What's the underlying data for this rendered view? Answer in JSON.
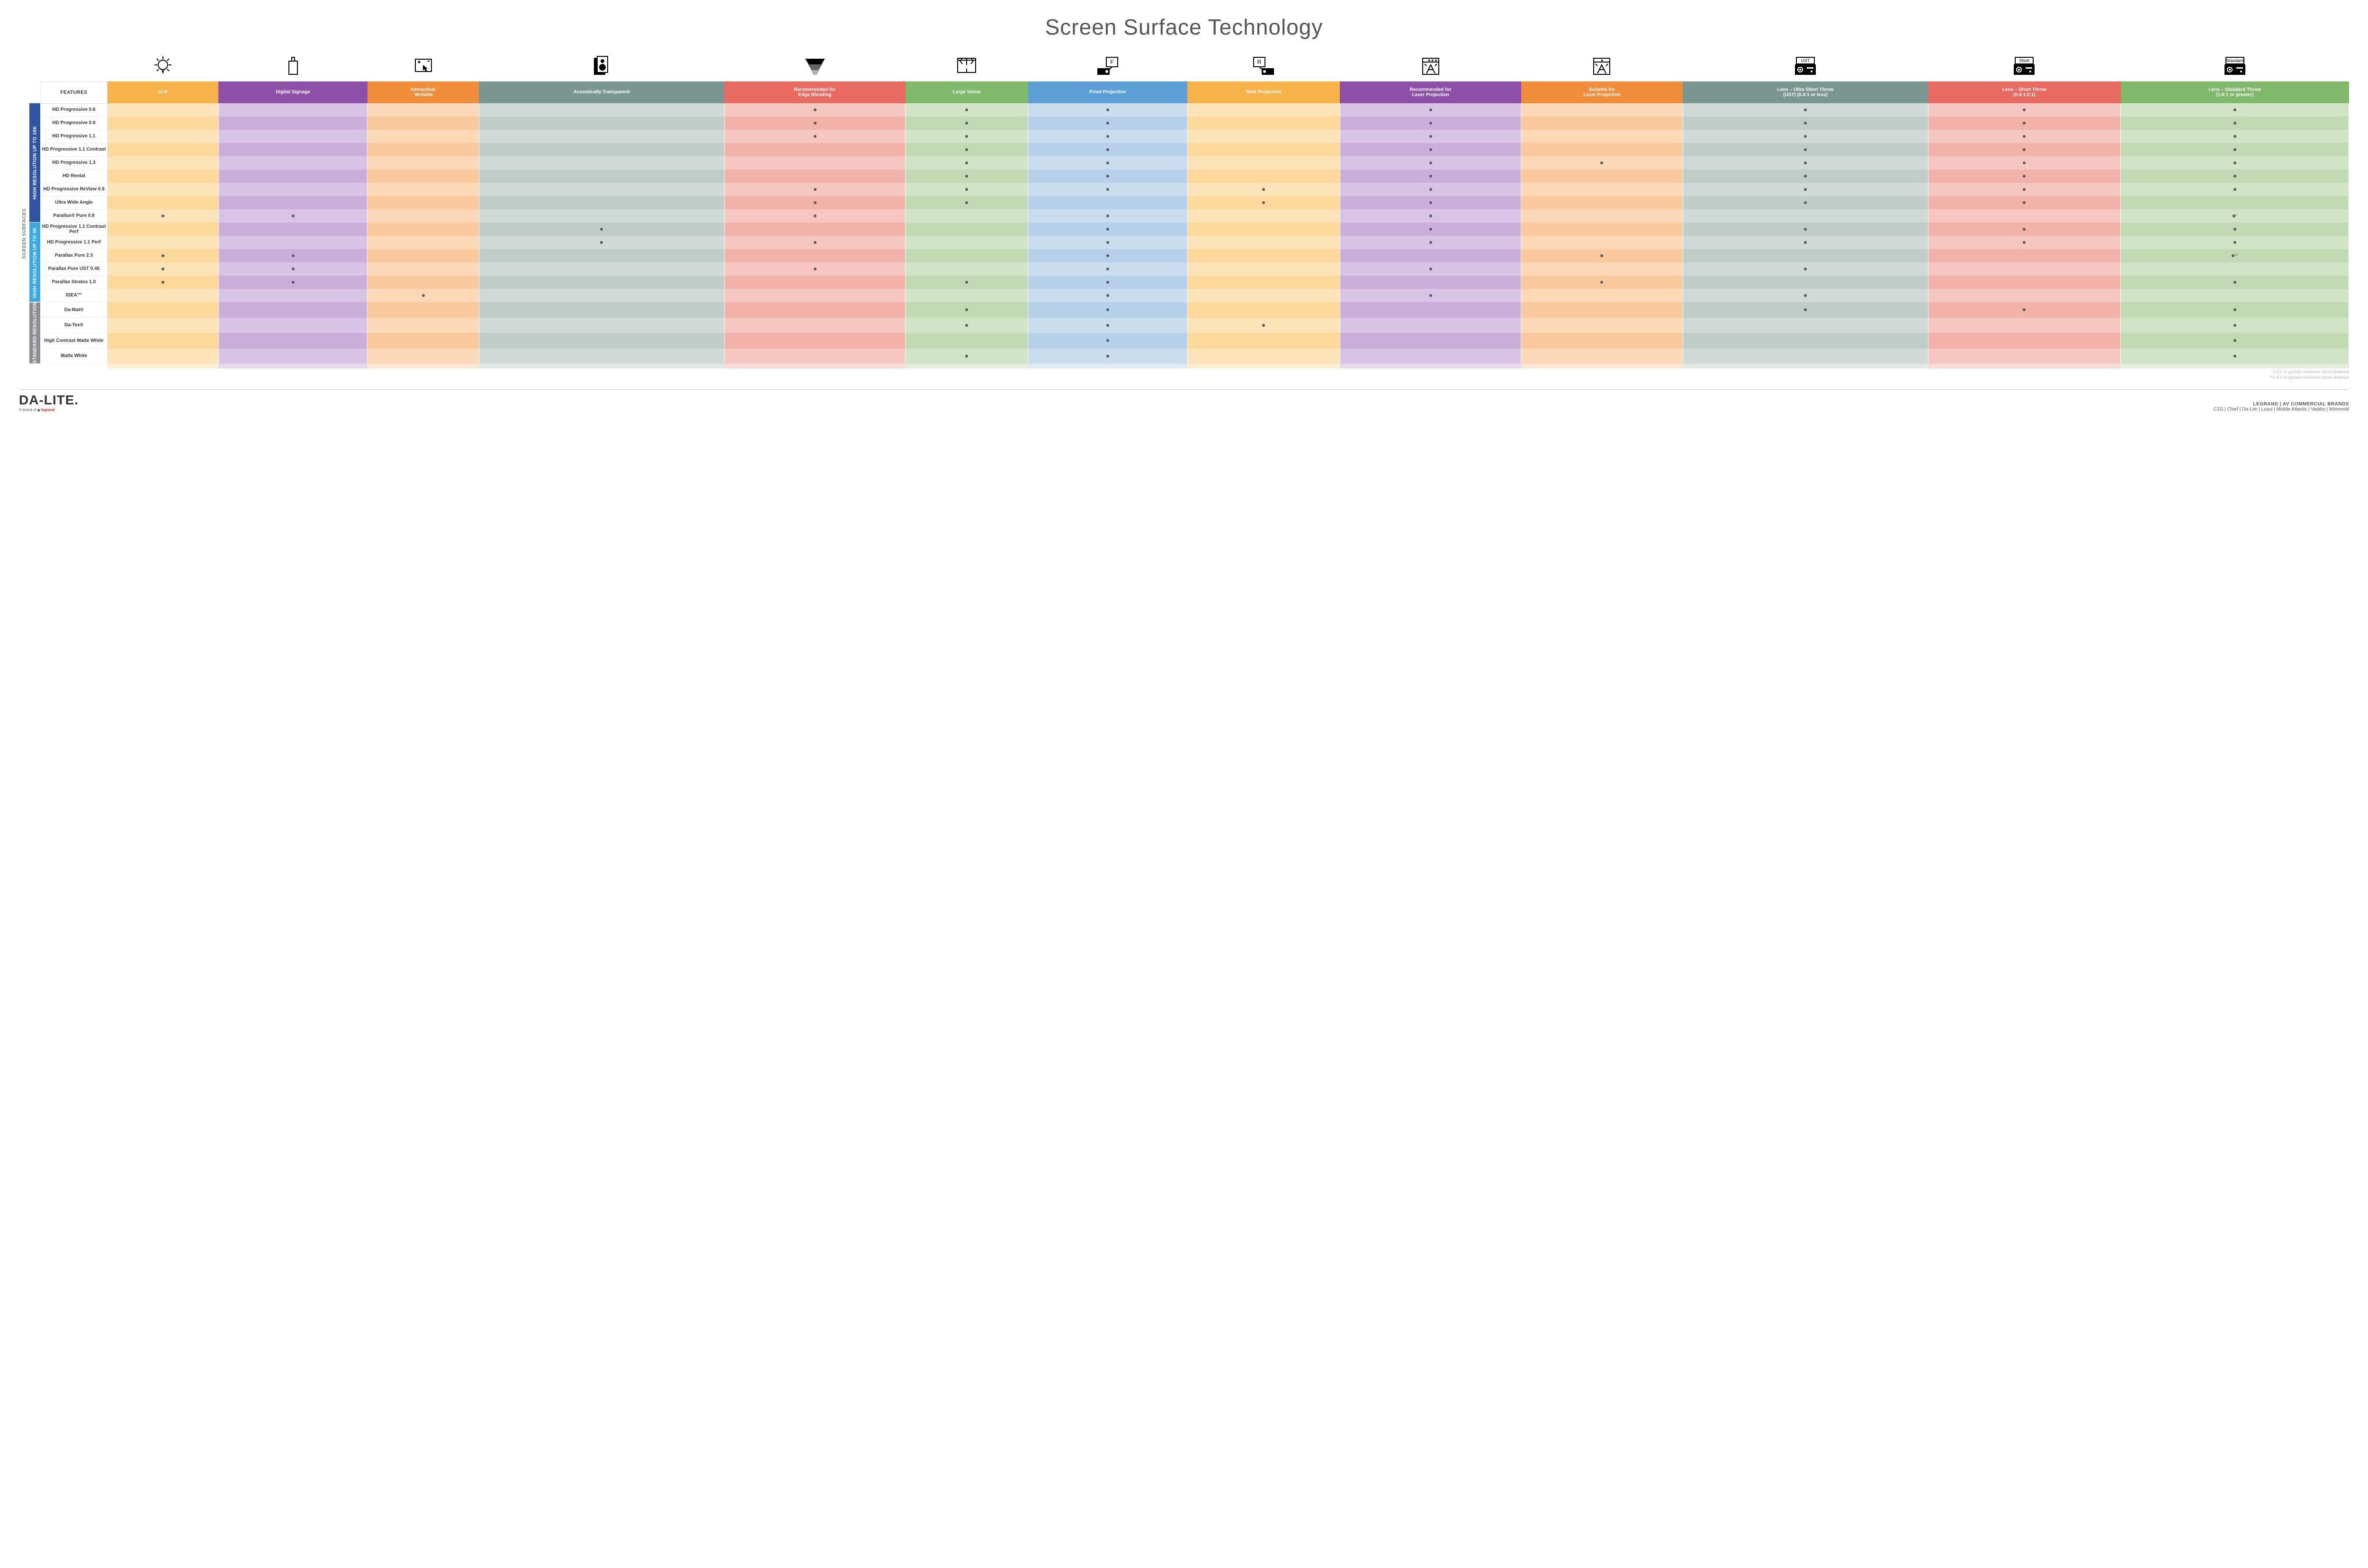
{
  "title": "Screen Surface Technology",
  "features_header": "FEATURES",
  "outer_category": "SCREEN SURFACES",
  "columns": [
    {
      "key": "alr",
      "label": "ALR",
      "base": "#f7b24a"
    },
    {
      "key": "signage",
      "label": "Digital Signage",
      "base": "#8e4fa8"
    },
    {
      "key": "interactive",
      "label": "Interactive/ Writable",
      "base": "#f08c3a"
    },
    {
      "key": "acoustic",
      "label": "Acoustically Transparent",
      "base": "#7a9690"
    },
    {
      "key": "edge",
      "label": "Recommended for Edge Blending",
      "base": "#e86a60"
    },
    {
      "key": "large",
      "label": "Large Venue",
      "base": "#7fb96c"
    },
    {
      "key": "front",
      "label": "Front Projection",
      "base": "#5c9fd6"
    },
    {
      "key": "rear",
      "label": "Rear Projection",
      "base": "#f7b24a"
    },
    {
      "key": "reclaser",
      "label": "Recommended for Laser Projection",
      "base": "#8e4fa8"
    },
    {
      "key": "suitlaser",
      "label": "Suitable for Laser Projection",
      "base": "#f08c3a"
    },
    {
      "key": "ust",
      "label": "Lens – Ultra Short Throw (UST) (0.4:1 or less)",
      "base": "#7a9690"
    },
    {
      "key": "short",
      "label": "Lens – Short Throw (0.4-1.0:1)",
      "base": "#e86a60"
    },
    {
      "key": "std",
      "label": "Lens – Standard Throw (1.0:1 or greater)",
      "base": "#7fb96c"
    }
  ],
  "column_tints": {
    "alr": [
      "#fde4b8",
      "#fcd89a"
    ],
    "signage": [
      "#d9c3e4",
      "#caaed9"
    ],
    "interactive": [
      "#fbd8b8",
      "#f9c89c"
    ],
    "acoustic": [
      "#cfd9d6",
      "#bfccc8"
    ],
    "edge": [
      "#f6c6c0",
      "#f2b2aa"
    ],
    "large": [
      "#d1e4c6",
      "#c1dab3"
    ],
    "front": [
      "#c9ddee",
      "#b5d0e8"
    ],
    "rear": [
      "#fde4b8",
      "#fcd89a"
    ],
    "reclaser": [
      "#d9c3e4",
      "#caaed9"
    ],
    "suitlaser": [
      "#fbd8b8",
      "#f9c89c"
    ],
    "ust": [
      "#cfd9d6",
      "#bfccc8"
    ],
    "short": [
      "#f6c6c0",
      "#f2b2aa"
    ],
    "std": [
      "#d1e4c6",
      "#c1dab3"
    ]
  },
  "dot_color": "#595959",
  "categories": [
    {
      "key": "hi16k",
      "label": "HIGH RESOLUTION UP TO 16K",
      "bg": "#2f54a1",
      "rows": [
        {
          "label": "HD Progressive 0.6",
          "dots": {
            "edge": "•",
            "large": "•",
            "front": "•",
            "reclaser": "•",
            "ust": "•",
            "short": "•",
            "std": "•"
          }
        },
        {
          "label": "HD Progressive 0.9",
          "dots": {
            "edge": "•",
            "large": "•",
            "front": "•",
            "reclaser": "•",
            "ust": "•",
            "short": "•",
            "std": "•"
          }
        },
        {
          "label": "HD Progressive 1.1",
          "dots": {
            "edge": "•",
            "large": "•",
            "front": "•",
            "reclaser": "•",
            "ust": "•",
            "short": "•",
            "std": "•"
          }
        },
        {
          "label": "HD Progressive 1.1 Contrast",
          "dots": {
            "large": "•",
            "front": "•",
            "reclaser": "•",
            "ust": "•",
            "short": "•",
            "std": "•"
          }
        },
        {
          "label": "HD Progressive 1.3",
          "dots": {
            "large": "•",
            "front": "•",
            "reclaser": "•",
            "suitlaser": "•",
            "ust": "•",
            "short": "•",
            "std": "•"
          }
        },
        {
          "label": "HD Rental",
          "dots": {
            "large": "•",
            "front": "•",
            "reclaser": "•",
            "ust": "•",
            "short": "•",
            "std": "•"
          }
        },
        {
          "label": "HD Progressive ReView 0.9",
          "dots": {
            "edge": "•",
            "large": "•",
            "front": "•",
            "rear": "•",
            "reclaser": "•",
            "ust": "•",
            "short": "•",
            "std": "•"
          }
        },
        {
          "label": "Ultra Wide Angle",
          "dots": {
            "edge": "•",
            "large": "•",
            "rear": "•",
            "reclaser": "•",
            "ust": "•",
            "short": "•"
          }
        },
        {
          "label": "Parallax® Pure 0.8",
          "dots": {
            "alr": "•",
            "signage": "•",
            "edge": "•",
            "front": "•",
            "reclaser": "•",
            "std": "•*"
          }
        }
      ]
    },
    {
      "key": "hi4k",
      "label": "HIGH RESOLUTION UP TO 4K",
      "bg": "#3aa9e0",
      "rows": [
        {
          "label": "HD Progressive 1.1 Contrast Perf",
          "dots": {
            "acoustic": "•",
            "front": "•",
            "reclaser": "•",
            "ust": "•",
            "short": "•",
            "std": "•"
          }
        },
        {
          "label": "HD Progressive 1.1 Perf",
          "dots": {
            "acoustic": "•",
            "edge": "•",
            "front": "•",
            "reclaser": "•",
            "ust": "•",
            "short": "•",
            "std": "•"
          }
        },
        {
          "label": "Parallax Pure 2.3",
          "dots": {
            "alr": "•",
            "signage": "•",
            "front": "•",
            "suitlaser": "•",
            "std": "•**"
          }
        },
        {
          "label": "Parallax Pure UST 0.45",
          "dots": {
            "alr": "•",
            "signage": "•",
            "edge": "•",
            "front": "•",
            "reclaser": "•",
            "ust": "•"
          }
        },
        {
          "label": "Parallax Stratos 1.0",
          "dots": {
            "alr": "•",
            "signage": "•",
            "large": "•",
            "front": "•",
            "suitlaser": "•",
            "std": "•"
          }
        },
        {
          "label": "IDEA™",
          "dots": {
            "interactive": "•",
            "front": "•",
            "reclaser": "•",
            "ust": "•"
          }
        }
      ]
    },
    {
      "key": "stdres",
      "label": "STANDARD RESOLUTION",
      "bg": "#8b8f94",
      "rows": [
        {
          "label": "Da-Mat®",
          "dots": {
            "large": "•",
            "front": "•",
            "ust": "•",
            "short": "•",
            "std": "•"
          }
        },
        {
          "label": "Da-Tex®",
          "dots": {
            "large": "•",
            "front": "•",
            "rear": "•",
            "std": "•"
          }
        },
        {
          "label": "High Contrast Matte White",
          "dots": {
            "front": "•",
            "std": "•"
          }
        },
        {
          "label": "Matte White",
          "dots": {
            "large": "•",
            "front": "•",
            "std": "•"
          }
        }
      ]
    }
  ],
  "footnotes": [
    "*1.5:1 or greater minimum throw distance",
    "**1.8:1 or greater minimum throw distance"
  ],
  "icons": {
    "ust_label": "UST",
    "short_label": "Short",
    "std_label": "Standard",
    "front_label": "F",
    "rear_label": "R"
  },
  "footer": {
    "brand": "DA-LITE.",
    "brand_sub_prefix": "A brand of ",
    "brand_sub_logo": "legrand",
    "right_top": "LEGRAND | AV COMMERCIAL BRANDS",
    "right_bottom": "C2G  |  Chief  |  Da-Lite  |  Luxul  |  Middle Atlantic  |  Vaddio  |  Wiremold"
  }
}
